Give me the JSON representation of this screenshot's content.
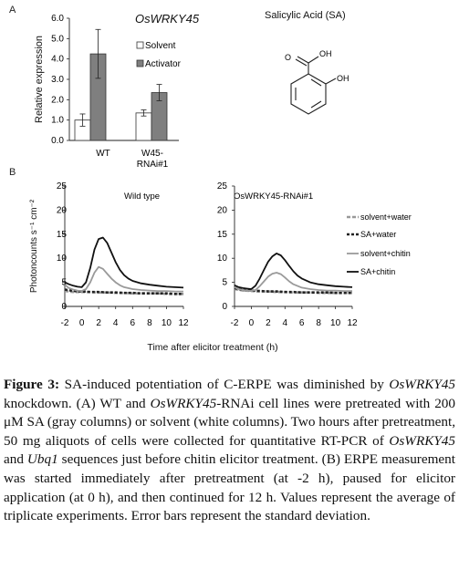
{
  "panel_a": {
    "label": "A",
    "chemical_title": "Salicylic Acid (SA)",
    "chem_o": "O",
    "chem_oh_acid": "OH",
    "chem_oh_ring": "OH"
  },
  "panel_b": {
    "label": "B",
    "shared_xlabel": "Time after elicitor treatment (h)"
  },
  "colors": {
    "solvent_bar": "#ffffff",
    "activator_bar": "#7f7f7f",
    "solvent_water": "#999999",
    "sa_water": "#222222",
    "solvent_chitin": "#9a9a9a",
    "sa_chitin": "#111111"
  },
  "chart_data": [
    {
      "type": "bar",
      "title": "OsWRKY45",
      "ylabel": "Relative expression",
      "ylim": [
        0,
        6
      ],
      "yticks": [
        "0.0",
        "1.0",
        "2.0",
        "3.0",
        "4.0",
        "5.0",
        "6.0"
      ],
      "categories": [
        "WT",
        "W45-RNAi#1"
      ],
      "category_lines": [
        [
          "WT"
        ],
        [
          "W45-",
          "RNAi#1"
        ]
      ],
      "series": [
        {
          "name": "Solvent",
          "values": [
            1.0,
            1.35
          ],
          "errors": [
            0.3,
            0.15
          ]
        },
        {
          "name": "Activator",
          "values": [
            4.25,
            2.35
          ],
          "errors": [
            1.2,
            0.4
          ]
        }
      ]
    },
    {
      "type": "line",
      "title": "Wild type",
      "ylabel": "Photoncounts s⁻¹ cm⁻²",
      "xlabel": "Time after elicitor treatment (h)",
      "xlim": [
        -2,
        12
      ],
      "ylim": [
        0,
        25
      ],
      "xticks": [
        "-2",
        "0",
        "2",
        "4",
        "6",
        "8",
        "10",
        "12"
      ],
      "yticks": [
        "0",
        "5",
        "10",
        "15",
        "20",
        "25"
      ],
      "series": [
        {
          "name": "solvent+water",
          "x": [
            -2,
            -1,
            0,
            1,
            2,
            3,
            4,
            5,
            6,
            7,
            8,
            9,
            10,
            11,
            12
          ],
          "y": [
            3.2,
            3.0,
            3.0,
            3.0,
            2.9,
            2.9,
            2.8,
            2.8,
            2.7,
            2.7,
            2.7,
            2.7,
            2.6,
            2.6,
            2.6
          ]
        },
        {
          "name": "SA+water",
          "x": [
            -2,
            -1,
            0,
            1,
            2,
            3,
            4,
            5,
            6,
            7,
            8,
            9,
            10,
            11,
            12
          ],
          "y": [
            3.5,
            3.2,
            3.1,
            3.0,
            3.0,
            2.9,
            2.9,
            2.8,
            2.8,
            2.7,
            2.7,
            2.7,
            2.7,
            2.6,
            2.6
          ]
        },
        {
          "name": "solvent+chitin",
          "x": [
            -2,
            -1.5,
            -1,
            -0.5,
            0,
            0.5,
            1,
            1.5,
            2,
            2.5,
            3,
            3.5,
            4,
            4.5,
            5,
            6,
            7,
            8,
            9,
            10,
            11,
            12
          ],
          "y": [
            4.5,
            3.8,
            3.5,
            3.3,
            3.2,
            3.6,
            5.0,
            7.0,
            8.2,
            7.8,
            6.8,
            5.8,
            5.0,
            4.4,
            4.0,
            3.6,
            3.4,
            3.3,
            3.2,
            3.2,
            3.1,
            3.1
          ]
        },
        {
          "name": "SA+chitin",
          "x": [
            -2,
            -1.5,
            -1,
            -0.5,
            0,
            0.5,
            1,
            1.5,
            2,
            2.5,
            3,
            3.5,
            4,
            4.5,
            5,
            5.5,
            6,
            7,
            8,
            9,
            10,
            11,
            12
          ],
          "y": [
            5.0,
            4.6,
            4.3,
            4.1,
            4.0,
            5.0,
            8.0,
            11.8,
            14.0,
            14.3,
            13.2,
            11.2,
            9.2,
            7.6,
            6.5,
            5.8,
            5.3,
            4.8,
            4.5,
            4.3,
            4.1,
            4.0,
            3.9
          ]
        }
      ]
    },
    {
      "type": "line",
      "title": "OsWRKY45-RNAi#1",
      "xlim": [
        -2,
        12
      ],
      "ylim": [
        0,
        25
      ],
      "xticks": [
        "-2",
        "0",
        "2",
        "4",
        "6",
        "8",
        "10",
        "12"
      ],
      "yticks": [
        "0",
        "5",
        "10",
        "15",
        "20",
        "25"
      ],
      "legend": "right",
      "series": [
        {
          "name": "solvent+water",
          "x": [
            -2,
            -1,
            0,
            1,
            2,
            3,
            4,
            5,
            6,
            7,
            8,
            9,
            10,
            11,
            12
          ],
          "y": [
            3.6,
            3.3,
            3.2,
            3.1,
            3.1,
            3.0,
            3.0,
            2.9,
            2.9,
            2.9,
            2.8,
            2.8,
            2.8,
            2.8,
            2.8
          ]
        },
        {
          "name": "SA+water",
          "x": [
            -2,
            -1,
            0,
            1,
            2,
            3,
            4,
            5,
            6,
            7,
            8,
            9,
            10,
            11,
            12
          ],
          "y": [
            3.8,
            3.4,
            3.3,
            3.2,
            3.1,
            3.1,
            3.0,
            3.0,
            2.9,
            2.9,
            2.9,
            2.9,
            2.8,
            2.8,
            2.8
          ]
        },
        {
          "name": "solvent+chitin",
          "x": [
            -2,
            -1.5,
            -1,
            -0.5,
            0,
            0.5,
            1,
            1.5,
            2,
            2.5,
            3,
            3.5,
            4,
            4.5,
            5,
            6,
            7,
            8,
            9,
            10,
            11,
            12
          ],
          "y": [
            4.0,
            3.6,
            3.4,
            3.3,
            3.2,
            3.4,
            4.2,
            5.2,
            6.2,
            6.8,
            7.0,
            6.7,
            6.0,
            5.2,
            4.6,
            3.9,
            3.6,
            3.4,
            3.3,
            3.3,
            3.2,
            3.2
          ]
        },
        {
          "name": "SA+chitin",
          "x": [
            -2,
            -1.5,
            -1,
            -0.5,
            0,
            0.5,
            1,
            1.5,
            2,
            2.5,
            3,
            3.5,
            4,
            4.5,
            5,
            5.5,
            6,
            7,
            8,
            9,
            10,
            11,
            12
          ],
          "y": [
            4.4,
            4.0,
            3.8,
            3.7,
            3.6,
            4.3,
            5.8,
            7.6,
            9.3,
            10.4,
            11.0,
            10.6,
            9.6,
            8.4,
            7.3,
            6.4,
            5.8,
            5.0,
            4.6,
            4.4,
            4.2,
            4.1,
            4.0
          ]
        }
      ]
    }
  ],
  "caption": {
    "label": "Figure 3:",
    "t1": " SA-induced potentiation of C-ERPE was diminished by ",
    "gene1": "OsWRKY45",
    "t2": " knockdown. (A) WT and ",
    "gene2": "OsWRKY45",
    "t3": "-RNAi cell lines were pretreated with 200 μM SA (gray columns) or solvent (white columns). Two hours after pretreatment, 50 mg aliquots of cells were collected for quantitative RT-PCR of ",
    "gene3": "OsWRKY45",
    "t4": " and ",
    "gene4": "Ubq1",
    "t5": " sequences just before chitin elicitor treatment. (B) ERPE measurement was started immediately after pretreatment (at -2 h), paused for elicitor application (at 0 h), and then continued for 12 h. Values represent the average of triplicate experiments. Error bars represent the standard deviation."
  }
}
